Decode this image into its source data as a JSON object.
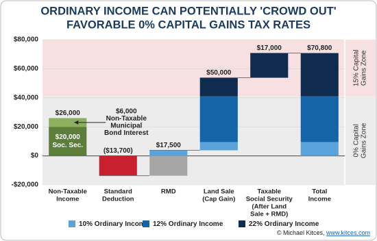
{
  "chart_data": {
    "type": "waterfall",
    "title": [
      "ORDINARY INCOME CAN POTENTIALLY 'CROWD OUT'",
      "FAVORABLE 0% CAPITAL GAINS TAX RATES"
    ],
    "categories": [
      [
        "Non-Taxable",
        "Income"
      ],
      [
        "Standard",
        "Deduction"
      ],
      [
        "RMD"
      ],
      [
        "Land Sale",
        "(Cap Gain)"
      ],
      [
        "Taxable",
        "Social Security",
        "(After Land",
        "Sale + RMD)"
      ],
      [
        "Total",
        "Income"
      ]
    ],
    "bases": [
      0,
      0,
      -13700,
      3800,
      53800,
      0
    ],
    "totals": [
      26000,
      -13700,
      17500,
      50000,
      17000,
      70800
    ],
    "total_labels": [
      "$26,000",
      "($13,700)",
      "$17,500",
      "$50,000",
      "$17,000",
      "$70,800"
    ],
    "series": [
      {
        "color": "#5b7f3b",
        "values": [
          20000,
          null,
          null,
          null,
          null,
          null
        ],
        "value_labels": [
          "$20,000",
          null,
          null,
          null,
          null,
          null
        ],
        "note": "Soc. Sec."
      },
      {
        "color": "#8cb15e",
        "values": [
          6000,
          null,
          null,
          null,
          null,
          null
        ]
      },
      {
        "color": "#c8202f",
        "values": [
          null,
          -13700,
          null,
          null,
          null,
          null
        ]
      },
      {
        "color": "#a6a6a6",
        "values": [
          null,
          null,
          13700,
          null,
          null,
          null
        ]
      },
      {
        "name": "10% Ordinary Income",
        "color": "#5aa2da",
        "values": [
          null,
          null,
          3800,
          5700,
          null,
          9500
        ]
      },
      {
        "name": "12% Ordinary Income",
        "color": "#1464a8",
        "values": [
          null,
          null,
          null,
          31500,
          null,
          31500
        ]
      },
      {
        "name": "22% Ordinary Income",
        "color": "#0f2b4d",
        "values": [
          null,
          null,
          null,
          12800,
          17000,
          29800
        ]
      }
    ],
    "annotation": [
      "$6,000",
      "Non-Taxable",
      "Municipal",
      "Bond Interest"
    ],
    "zones": [
      {
        "label": [
          "15% Capital",
          "Gains Zone"
        ],
        "from": 41000,
        "to": 80000,
        "color": "#f6e0e2"
      },
      {
        "label": [
          "0% Capital",
          "Gains Zone"
        ],
        "from": -20000,
        "to": 41000,
        "color": "#ececec"
      }
    ],
    "ylim": [
      -20000,
      80000
    ],
    "yticks": [
      {
        "value": 80000,
        "label": "$80,000"
      },
      {
        "value": 60000,
        "label": "$60,000"
      },
      {
        "value": 40000,
        "label": "$40,000"
      },
      {
        "value": 20000,
        "label": "$20,000"
      },
      {
        "value": 0,
        "label": "$0"
      },
      {
        "value": -20000,
        "label": "-$20,000"
      }
    ],
    "grid": true,
    "credit": "© Michael Kitces, ",
    "credit_link": "www.kitces.com"
  }
}
